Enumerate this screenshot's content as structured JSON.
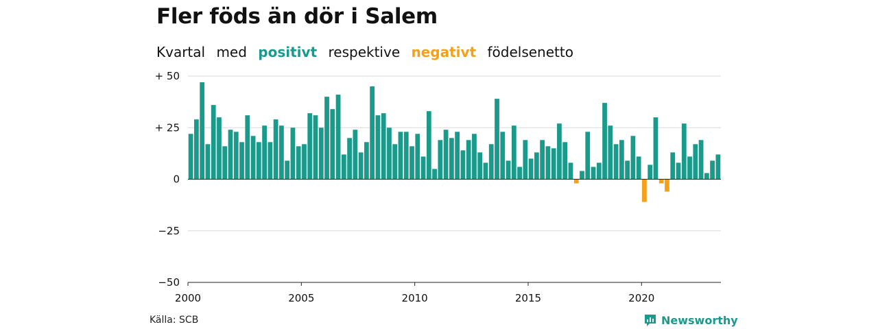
{
  "title": "Fler föds än dör i Salem",
  "subtitle": {
    "part1": "Kvartal",
    "part2": "med",
    "positive": "positivt",
    "part3": "respektive",
    "negative": "negativt",
    "part4": "födelsenetto"
  },
  "source": "Källa: SCB",
  "brand": "Newsworthy",
  "colors": {
    "positive": "#1a9a8b",
    "negative": "#f5a01a",
    "grid": "#d9d9d9",
    "axis": "#222222",
    "brand": "#1a9a8b"
  },
  "chart_data": {
    "type": "bar",
    "title": "Fler föds än dör i Salem",
    "xlabel": "",
    "ylabel": "",
    "ylim": [
      -50,
      50
    ],
    "yticks": [
      {
        "value": 50,
        "label": "+ 50"
      },
      {
        "value": 25,
        "label": "+ 25"
      },
      {
        "value": 0,
        "label": "0"
      },
      {
        "value": -25,
        "label": "−25"
      },
      {
        "value": -50,
        "label": "−50"
      }
    ],
    "xticks": [
      {
        "value": 2000,
        "label": "2000"
      },
      {
        "value": 2005,
        "label": "2005"
      },
      {
        "value": 2010,
        "label": "2010"
      },
      {
        "value": 2015,
        "label": "2015"
      },
      {
        "value": 2020,
        "label": "2020"
      }
    ],
    "start_year": 2000,
    "grid": true,
    "legend": "none",
    "values": [
      22,
      29,
      47,
      17,
      36,
      30,
      16,
      24,
      23,
      18,
      31,
      21,
      18,
      26,
      18,
      29,
      26,
      9,
      25,
      16,
      17,
      32,
      31,
      25,
      40,
      34,
      41,
      12,
      20,
      24,
      13,
      18,
      45,
      31,
      32,
      25,
      17,
      23,
      23,
      16,
      22,
      11,
      33,
      5,
      19,
      24,
      20,
      23,
      14,
      19,
      22,
      13,
      8,
      17,
      39,
      23,
      9,
      26,
      6,
      19,
      10,
      13,
      19,
      16,
      15,
      27,
      18,
      8,
      -2,
      4,
      23,
      6,
      8,
      37,
      26,
      17,
      19,
      9,
      21,
      11,
      -11,
      7,
      30,
      -2,
      -6,
      13,
      8,
      27,
      11,
      17,
      19,
      3,
      9,
      12
    ]
  }
}
